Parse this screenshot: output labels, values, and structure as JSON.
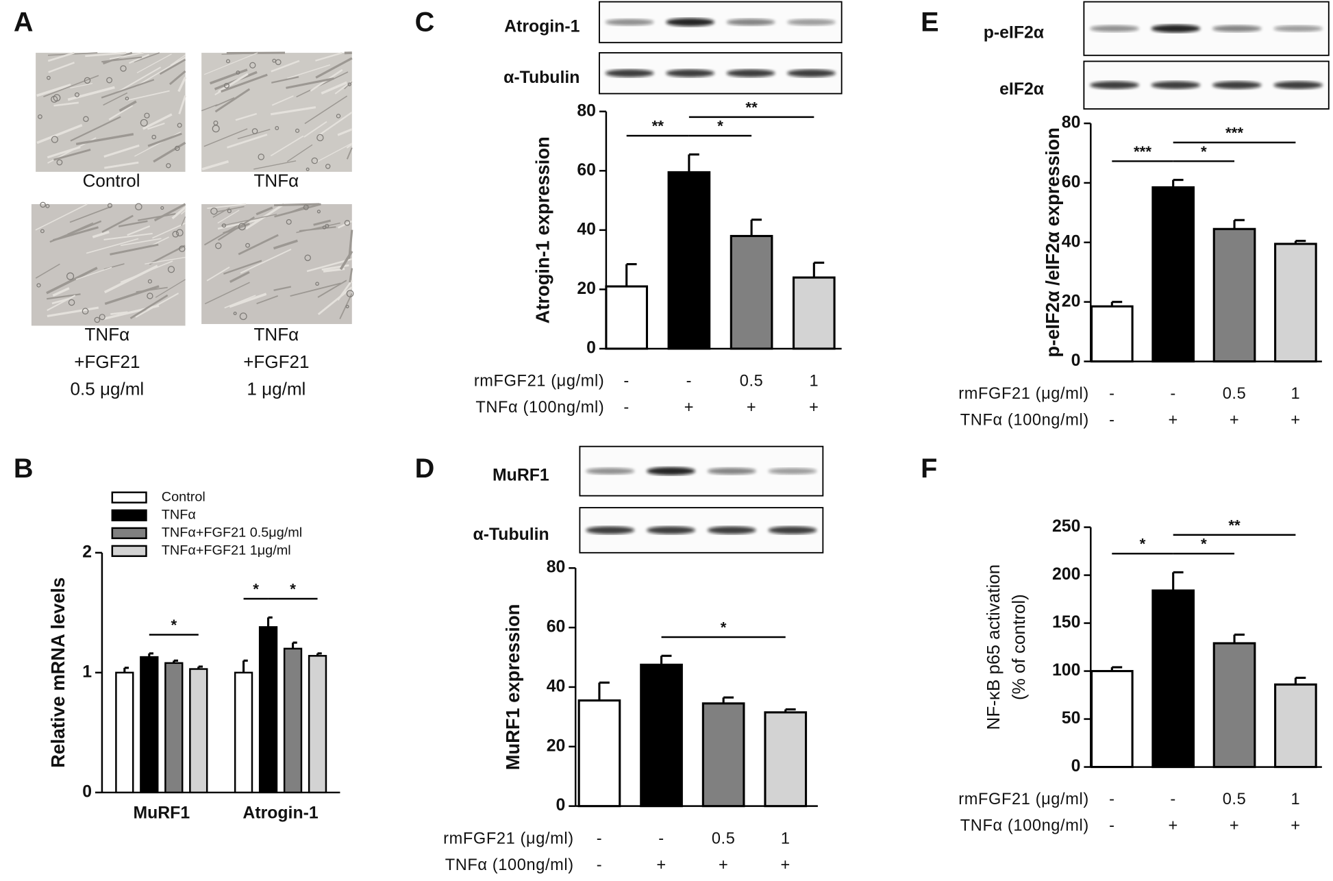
{
  "panel_a": {
    "label": "A",
    "captions": [
      [
        "Control"
      ],
      [
        "TNFα"
      ],
      [
        "TNFα",
        "+FGF21",
        "0.5 μg/ml"
      ],
      [
        "TNFα",
        "+FGF21",
        "1 μg/ml"
      ]
    ]
  },
  "chart_data": [
    {
      "type": "grouped_bar",
      "panel": "B",
      "ylabel": "Relative mRNA levels",
      "categories": [
        "MuRF1",
        "Atrogin-1"
      ],
      "series": [
        {
          "name": "Control",
          "color": "#ffffff",
          "values": [
            1.0,
            1.0
          ],
          "errors": [
            0.04,
            0.1
          ]
        },
        {
          "name": "TNFα",
          "color": "#000000",
          "values": [
            1.13,
            1.38
          ],
          "errors": [
            0.03,
            0.08
          ]
        },
        {
          "name": "TNFα+FGF21 0.5μg/ml",
          "color": "#808080",
          "values": [
            1.08,
            1.2
          ],
          "errors": [
            0.02,
            0.05
          ]
        },
        {
          "name": "TNFα+FGF21 1μg/ml",
          "color": "#d3d3d3",
          "values": [
            1.03,
            1.14
          ],
          "errors": [
            0.02,
            0.02
          ]
        }
      ],
      "ylim": [
        0,
        2
      ],
      "yticks": [
        0,
        1,
        2
      ],
      "legend": "upper left",
      "significance": [
        {
          "label": "*",
          "group": 0,
          "from": 1,
          "to": 3
        },
        {
          "label": "*",
          "group": 1,
          "from": 0,
          "to": 1
        },
        {
          "label": "*",
          "group": 1,
          "from": 1,
          "to": 3
        }
      ]
    },
    {
      "type": "bar",
      "panel": "C",
      "blots": [
        "Atrogin-1",
        "α-Tubulin"
      ],
      "ylabel": "Atrogin-1 expression",
      "values": [
        21,
        59.5,
        38,
        24
      ],
      "errors": [
        7.5,
        6,
        5.5,
        5
      ],
      "colors": [
        "#ffffff",
        "#000000",
        "#808080",
        "#d3d3d3"
      ],
      "ylim": [
        0,
        80
      ],
      "yticks": [
        0,
        20,
        40,
        60,
        80
      ],
      "conditions": [
        {
          "name": "rmFGF21 (μg/ml)",
          "levels": [
            "-",
            "-",
            "0.5",
            "1"
          ]
        },
        {
          "name": "TNFα (100ng/ml)",
          "levels": [
            "-",
            "+",
            "+",
            "+"
          ]
        }
      ],
      "significance": [
        {
          "label": "**",
          "from": 0,
          "to": 1
        },
        {
          "label": "*",
          "from": 1,
          "to": 2
        },
        {
          "label": "**",
          "from": 1,
          "to": 3
        }
      ]
    },
    {
      "type": "bar",
      "panel": "D",
      "blots": [
        "MuRF1",
        "α-Tubulin"
      ],
      "ylabel": "MuRF1 expression",
      "values": [
        35.5,
        47.5,
        34.5,
        31.5
      ],
      "errors": [
        6,
        3,
        2,
        1
      ],
      "colors": [
        "#ffffff",
        "#000000",
        "#808080",
        "#d3d3d3"
      ],
      "ylim": [
        0,
        80
      ],
      "yticks": [
        0,
        20,
        40,
        60,
        80
      ],
      "conditions": [
        {
          "name": "rmFGF21 (μg/ml)",
          "levels": [
            "-",
            "-",
            "0.5",
            "1"
          ]
        },
        {
          "name": "TNFα (100ng/ml)",
          "levels": [
            "-",
            "+",
            "+",
            "+"
          ]
        }
      ],
      "significance": [
        {
          "label": "*",
          "from": 1,
          "to": 3
        }
      ]
    },
    {
      "type": "bar",
      "panel": "E",
      "blots": [
        "p-eIF2α",
        "eIF2α"
      ],
      "ylabel": "p-eIF2α /eIF2α expression",
      "values": [
        18.5,
        58.5,
        44.5,
        39.5
      ],
      "errors": [
        1.5,
        2.5,
        3,
        1
      ],
      "colors": [
        "#ffffff",
        "#000000",
        "#808080",
        "#d3d3d3"
      ],
      "ylim": [
        0,
        80
      ],
      "yticks": [
        0,
        20,
        40,
        60,
        80
      ],
      "conditions": [
        {
          "name": "rmFGF21 (μg/ml)",
          "levels": [
            "-",
            "-",
            "0.5",
            "1"
          ]
        },
        {
          "name": "TNFα (100ng/ml)",
          "levels": [
            "-",
            "+",
            "+",
            "+"
          ]
        }
      ],
      "significance": [
        {
          "label": "***",
          "from": 0,
          "to": 1
        },
        {
          "label": "*",
          "from": 1,
          "to": 2
        },
        {
          "label": "***",
          "from": 1,
          "to": 3
        }
      ]
    },
    {
      "type": "bar",
      "panel": "F",
      "ylabel": [
        "NF-κB p65 activation",
        "(% of control)"
      ],
      "values": [
        100,
        184,
        129,
        86
      ],
      "errors": [
        4,
        19,
        9,
        7
      ],
      "colors": [
        "#ffffff",
        "#000000",
        "#808080",
        "#d3d3d3"
      ],
      "ylim": [
        0,
        250
      ],
      "yticks": [
        0,
        50,
        100,
        150,
        200,
        250
      ],
      "conditions": [
        {
          "name": "rmFGF21 (μg/ml)",
          "levels": [
            "-",
            "-",
            "0.5",
            "1"
          ]
        },
        {
          "name": "TNFα (100ng/ml)",
          "levels": [
            "-",
            "+",
            "+",
            "+"
          ]
        }
      ],
      "significance": [
        {
          "label": "*",
          "from": 0,
          "to": 1
        },
        {
          "label": "*",
          "from": 1,
          "to": 2
        },
        {
          "label": "**",
          "from": 1,
          "to": 3
        }
      ]
    }
  ]
}
